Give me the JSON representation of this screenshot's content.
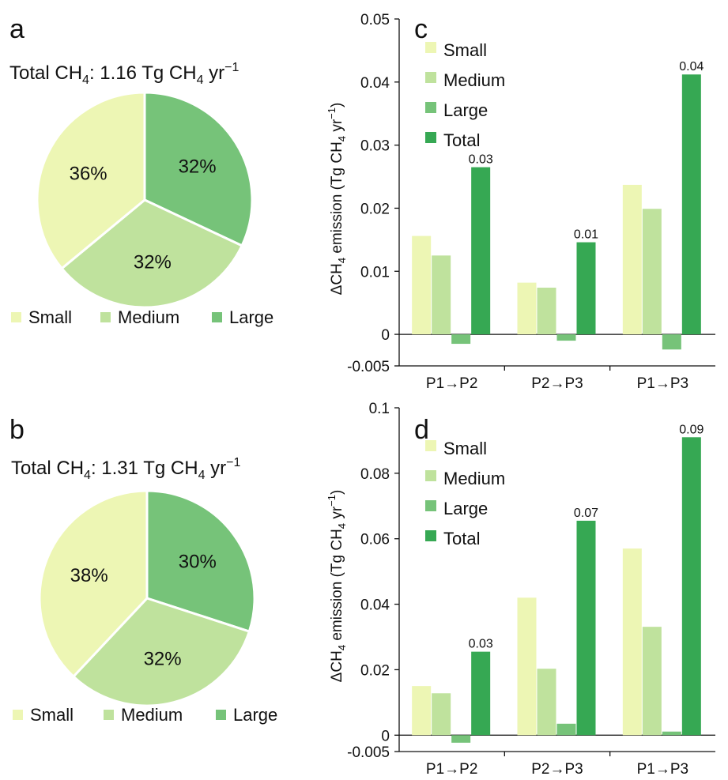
{
  "colors": {
    "small": "#edf6b4",
    "medium": "#bfe29d",
    "large": "#76c379",
    "total": "#36a853",
    "axis": "#111111"
  },
  "chart_data": [
    {
      "panel": "a",
      "type": "pie",
      "title_prefix": "Total CH",
      "title_sub": "4",
      "title_mid": ": 1.16 Tg CH",
      "title_sub2": "4",
      "title_mid2": " yr",
      "title_sup": "−1",
      "slices": [
        {
          "key": "small",
          "label": "Small",
          "value": 36,
          "text": "36%"
        },
        {
          "key": "medium",
          "label": "Medium",
          "value": 32,
          "text": "32%"
        },
        {
          "key": "large",
          "label": "Large",
          "value": 32,
          "text": "32%"
        }
      ],
      "legend": [
        "Small",
        "Medium",
        "Large"
      ]
    },
    {
      "panel": "b",
      "type": "pie",
      "title_prefix": "Total CH",
      "title_sub": "4",
      "title_mid": ": 1.31 Tg CH",
      "title_sub2": "4",
      "title_mid2": " yr",
      "title_sup": "−1",
      "slices": [
        {
          "key": "small",
          "label": "Small",
          "value": 38,
          "text": "38%"
        },
        {
          "key": "medium",
          "label": "Medium",
          "value": 32,
          "text": "32%"
        },
        {
          "key": "large",
          "label": "Large",
          "value": 30,
          "text": "30%"
        }
      ],
      "legend": [
        "Small",
        "Medium",
        "Large"
      ]
    },
    {
      "panel": "c",
      "type": "bar",
      "categories": [
        "P1→P2",
        "P2→P3",
        "P1→P3"
      ],
      "ylabel_pre": "ΔCH",
      "ylabel_sub": "4",
      "ylabel_mid": " emission (Tg CH",
      "ylabel_sub2": "4",
      "ylabel_mid2": " yr",
      "ylabel_sup": "−1",
      "ylabel_end": ")",
      "ylim": [
        -0.005,
        0.05
      ],
      "yticks": [
        -0.005,
        0,
        0.01,
        0.02,
        0.03,
        0.04,
        0.05
      ],
      "ytick_labels": [
        "-0.005",
        "0",
        "0.01",
        "0.02",
        "0.03",
        "0.04",
        "0.05"
      ],
      "series": [
        {
          "key": "small",
          "name": "Small",
          "values": [
            0.0156,
            0.0082,
            0.0237
          ]
        },
        {
          "key": "medium",
          "name": "Medium",
          "values": [
            0.0125,
            0.0074,
            0.0199
          ]
        },
        {
          "key": "large",
          "name": "Large",
          "values": [
            -0.0015,
            -0.001,
            -0.0024
          ]
        },
        {
          "key": "total",
          "name": "Total",
          "values": [
            0.0265,
            0.0146,
            0.0412
          ]
        }
      ],
      "data_labels": [
        "0.03",
        "0.01",
        "0.04"
      ]
    },
    {
      "panel": "d",
      "type": "bar",
      "categories": [
        "P1→P2",
        "P2→P3",
        "P1→P3"
      ],
      "ylabel_pre": "ΔCH",
      "ylabel_sub": "4",
      "ylabel_mid": " emission (Tg CH",
      "ylabel_sub2": "4",
      "ylabel_mid2": " yr",
      "ylabel_sup": "−1",
      "ylabel_end": ")",
      "ylim": [
        -0.005,
        0.1
      ],
      "yticks": [
        -0.005,
        0,
        0.02,
        0.04,
        0.06,
        0.08,
        0.1
      ],
      "ytick_labels": [
        "-0.005",
        "0",
        "0.02",
        "0.04",
        "0.06",
        "0.08",
        "0.1"
      ],
      "series": [
        {
          "key": "small",
          "name": "Small",
          "values": [
            0.015,
            0.042,
            0.057
          ]
        },
        {
          "key": "medium",
          "name": "Medium",
          "values": [
            0.0128,
            0.0203,
            0.0331
          ]
        },
        {
          "key": "large",
          "name": "Large",
          "values": [
            -0.0023,
            0.0035,
            0.0011
          ]
        },
        {
          "key": "total",
          "name": "Total",
          "values": [
            0.0255,
            0.0655,
            0.091
          ]
        }
      ],
      "data_labels": [
        "0.03",
        "0.07",
        "0.09"
      ]
    }
  ]
}
